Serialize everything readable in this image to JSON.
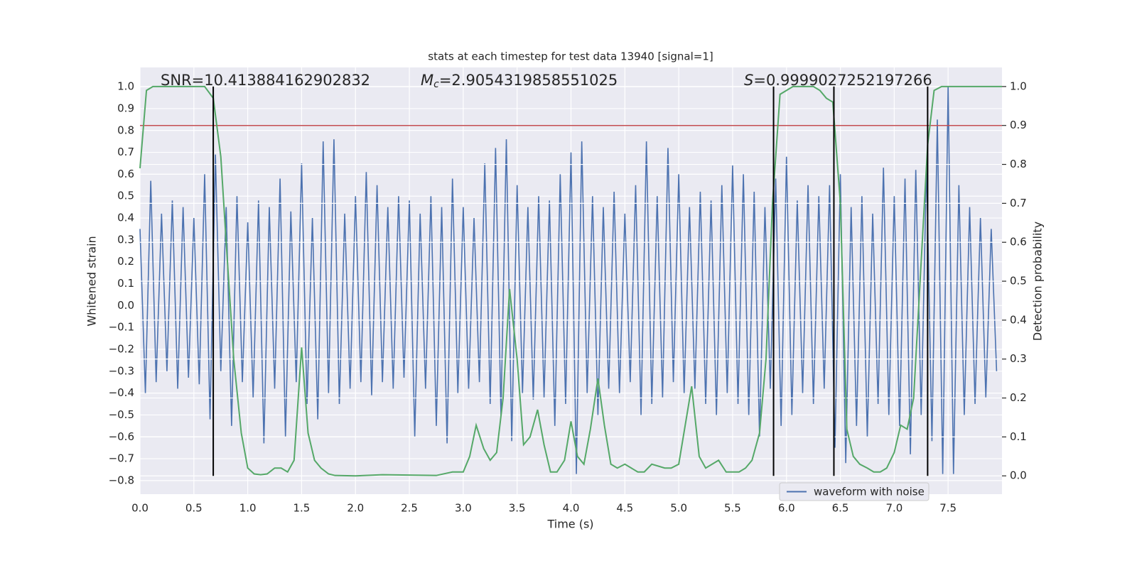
{
  "chart_data": {
    "type": "line",
    "title": "stats at each timestep for test data 13940 [signal=1]",
    "xlabel": "Time (s)",
    "ylabel": "Whitened strain",
    "y2label": "Detection probability",
    "xlim": [
      0,
      8
    ],
    "ylim": [
      -0.862,
      1.088
    ],
    "y2lim": [
      -0.047,
      1.049
    ],
    "xticks": [
      {
        "value": 0,
        "label": "0.0"
      },
      {
        "value": 0.5,
        "label": "0.5"
      },
      {
        "value": 1,
        "label": "1.0"
      },
      {
        "value": 1.5,
        "label": "1.5"
      },
      {
        "value": 2,
        "label": "2.0"
      },
      {
        "value": 2.5,
        "label": "2.5"
      },
      {
        "value": 3,
        "label": "3.0"
      },
      {
        "value": 3.5,
        "label": "3.5"
      },
      {
        "value": 4,
        "label": "4.0"
      },
      {
        "value": 4.5,
        "label": "4.5"
      },
      {
        "value": 5,
        "label": "5.0"
      },
      {
        "value": 5.5,
        "label": "5.5"
      },
      {
        "value": 6,
        "label": "6.0"
      },
      {
        "value": 6.5,
        "label": "6.5"
      },
      {
        "value": 7,
        "label": "7.0"
      },
      {
        "value": 7.5,
        "label": "7.5"
      }
    ],
    "yticks": [
      {
        "value": -0.8,
        "label": "−0.8"
      },
      {
        "value": -0.7,
        "label": "−0.7"
      },
      {
        "value": -0.6,
        "label": "−0.6"
      },
      {
        "value": -0.5,
        "label": "−0.5"
      },
      {
        "value": -0.4,
        "label": "−0.4"
      },
      {
        "value": -0.3,
        "label": "−0.3"
      },
      {
        "value": -0.2,
        "label": "−0.2"
      },
      {
        "value": -0.1,
        "label": "−0.1"
      },
      {
        "value": 0,
        "label": "0.0"
      },
      {
        "value": 0.1,
        "label": "0.1"
      },
      {
        "value": 0.2,
        "label": "0.2"
      },
      {
        "value": 0.3,
        "label": "0.3"
      },
      {
        "value": 0.4,
        "label": "0.4"
      },
      {
        "value": 0.5,
        "label": "0.5"
      },
      {
        "value": 0.6,
        "label": "0.6"
      },
      {
        "value": 0.7,
        "label": "0.7"
      },
      {
        "value": 0.8,
        "label": "0.8"
      },
      {
        "value": 0.9,
        "label": "0.9"
      },
      {
        "value": 1,
        "label": "1.0"
      }
    ],
    "y2ticks": [
      {
        "value": 0,
        "label": "0.0"
      },
      {
        "value": 0.1,
        "label": "0.1"
      },
      {
        "value": 0.2,
        "label": "0.2"
      },
      {
        "value": 0.3,
        "label": "0.3"
      },
      {
        "value": 0.4,
        "label": "0.4"
      },
      {
        "value": 0.5,
        "label": "0.5"
      },
      {
        "value": 0.6,
        "label": "0.6"
      },
      {
        "value": 0.7,
        "label": "0.7"
      },
      {
        "value": 0.8,
        "label": "0.8"
      },
      {
        "value": 0.9,
        "label": "0.9"
      },
      {
        "value": 1,
        "label": "1.0"
      }
    ],
    "grid": true,
    "legend": "lower right",
    "waveform": {
      "name": "waveform with noise",
      "color": "#4c72b0",
      "t0": 0,
      "dt": 0.05,
      "values": [
        0.35,
        -0.4,
        0.57,
        -0.35,
        0.42,
        -0.3,
        0.48,
        -0.38,
        0.45,
        -0.33,
        0.4,
        -0.36,
        0.6,
        -0.52,
        0.69,
        -0.3,
        0.45,
        -0.55,
        0.5,
        -0.35,
        0.38,
        -0.42,
        0.48,
        -0.63,
        0.45,
        -0.38,
        0.58,
        -0.6,
        0.43,
        -0.35,
        0.65,
        -0.45,
        0.4,
        -0.52,
        0.75,
        -0.4,
        0.76,
        -0.45,
        0.42,
        -0.38,
        0.5,
        -0.35,
        0.61,
        -0.41,
        0.55,
        -0.35,
        0.45,
        -0.38,
        0.5,
        -0.33,
        0.48,
        -0.6,
        0.42,
        -0.38,
        0.5,
        -0.55,
        0.45,
        -0.63,
        0.58,
        -0.4,
        0.45,
        -0.38,
        0.4,
        -0.35,
        0.65,
        -0.45,
        0.72,
        -0.5,
        0.76,
        -0.62,
        0.55,
        -0.4,
        0.45,
        -0.43,
        0.5,
        -0.42,
        0.48,
        -0.55,
        0.6,
        -0.45,
        0.7,
        -0.77,
        0.75,
        -0.4,
        0.5,
        -0.5,
        0.45,
        -0.38,
        0.52,
        -0.4,
        0.42,
        -0.35,
        0.55,
        -0.5,
        0.75,
        -0.45,
        0.5,
        -0.42,
        0.72,
        -0.35,
        0.6,
        -0.4,
        0.45,
        -0.38,
        0.52,
        -0.45,
        0.48,
        -0.5,
        0.55,
        -0.4,
        0.64,
        -0.45,
        0.6,
        -0.5,
        0.52,
        -0.6,
        0.45,
        -0.38,
        0.58,
        -0.55,
        0.68,
        -0.5,
        0.48,
        -0.4,
        0.55,
        -0.45,
        0.5,
        -0.38,
        0.55,
        -0.65,
        0.6,
        -0.72,
        0.45,
        -0.55,
        0.5,
        -0.6,
        0.42,
        -0.45,
        0.63,
        -0.5,
        0.5,
        -0.55,
        0.58,
        -0.68,
        0.62,
        -0.5,
        0.65,
        -0.62,
        0.85,
        -0.77,
        1.0,
        -0.77,
        0.55,
        -0.5,
        0.45,
        -0.45,
        0.4,
        -0.42,
        0.35,
        -0.3
      ]
    },
    "probability": {
      "color": "#55a868",
      "axis": "y2",
      "x": [
        0,
        0.06,
        0.12,
        0.3,
        0.6,
        0.68,
        0.75,
        0.8,
        0.87,
        0.94,
        1,
        1.06,
        1.12,
        1.18,
        1.25,
        1.31,
        1.37,
        1.43,
        1.5,
        1.56,
        1.62,
        1.68,
        1.75,
        1.81,
        2,
        2.25,
        2.5,
        2.75,
        2.9,
        3,
        3.06,
        3.12,
        3.19,
        3.25,
        3.31,
        3.37,
        3.43,
        3.5,
        3.56,
        3.62,
        3.69,
        3.75,
        3.81,
        3.87,
        3.94,
        4,
        4.06,
        4.12,
        4.18,
        4.25,
        4.31,
        4.37,
        4.43,
        4.5,
        4.62,
        4.68,
        4.75,
        4.87,
        4.93,
        5,
        5.06,
        5.12,
        5.19,
        5.25,
        5.31,
        5.37,
        5.44,
        5.5,
        5.56,
        5.62,
        5.68,
        5.75,
        5.81,
        5.87,
        5.94,
        6,
        6.06,
        6.25,
        6.31,
        6.37,
        6.43,
        6.5,
        6.56,
        6.62,
        6.68,
        6.75,
        6.81,
        6.87,
        6.93,
        7,
        7.06,
        7.12,
        7.18,
        7.25,
        7.31,
        7.37,
        7.44,
        7.6,
        8
      ],
      "values": [
        0.79,
        0.99,
        1,
        1,
        1,
        0.97,
        0.82,
        0.6,
        0.3,
        0.11,
        0.02,
        0.005,
        0.003,
        0.005,
        0.02,
        0.02,
        0.01,
        0.04,
        0.33,
        0.11,
        0.04,
        0.02,
        0.005,
        0.001,
        0,
        0.003,
        0.002,
        0.001,
        0.01,
        0.01,
        0.05,
        0.13,
        0.07,
        0.04,
        0.06,
        0.2,
        0.48,
        0.3,
        0.08,
        0.1,
        0.17,
        0.08,
        0.01,
        0.01,
        0.04,
        0.14,
        0.05,
        0.03,
        0.12,
        0.25,
        0.13,
        0.03,
        0.02,
        0.03,
        0.01,
        0.01,
        0.03,
        0.02,
        0.02,
        0.03,
        0.13,
        0.23,
        0.05,
        0.02,
        0.03,
        0.04,
        0.01,
        0.01,
        0.01,
        0.02,
        0.04,
        0.11,
        0.3,
        0.7,
        0.98,
        0.99,
        1,
        1,
        0.99,
        0.97,
        0.96,
        0.7,
        0.12,
        0.05,
        0.03,
        0.02,
        0.01,
        0.01,
        0.02,
        0.06,
        0.13,
        0.12,
        0.2,
        0.55,
        0.85,
        0.99,
        1,
        1,
        1
      ]
    },
    "threshold": {
      "value": 0.9,
      "axis": "y2",
      "color": "#c44e52"
    },
    "vlines": {
      "color": "#000000",
      "axis": "y2",
      "x": [
        0.68,
        5.88,
        6.44,
        7.31
      ]
    },
    "annotations": [
      {
        "text": "SNR=10.413884162902832"
      },
      {
        "symbol": "M",
        "sub": "c",
        "text": "=2.9054319858551025"
      },
      {
        "symbol": "S",
        "text": "=0.9999027252197266"
      }
    ]
  }
}
